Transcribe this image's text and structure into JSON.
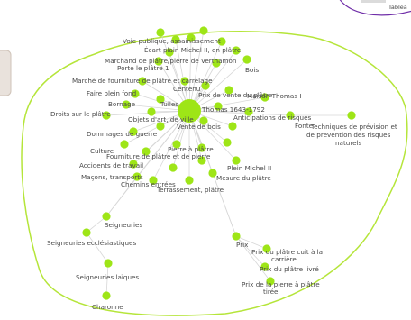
{
  "colors": {
    "node": "#9ee517",
    "edge": "#d7d7d7",
    "outline_main": "#b5e53a",
    "outline_corner": "#6f2da8",
    "side_panel": "#e9e2dc",
    "side_panel_border": "#cfc3b8",
    "text": "#4a4a4a"
  },
  "corner": {
    "label": "Tablea"
  },
  "graph": {
    "center_label": "Thomas 1643-1792",
    "labels": {
      "vase_publique": "Voie publique, assainissement",
      "ecart_plain": "Écart plain Michel II, en plâtre",
      "marchand_platre": "Marchand de plâtre/pierre de Verthamon",
      "porte_plaire": "Porte le plâtre 1",
      "bois": "Bois",
      "marche_fourniture": "Marché de fourniture de plâtre et carrelage",
      "construction_urbaine": "Centenu",
      "faire_plein": "Faire plein fond",
      "prix_vente": "Prix de vente du plâtre",
      "maison_thomas": "Maison Thomas I",
      "bornage": "Bornage",
      "droits": "Droits sur le plâtre",
      "tuiles": "Tuiles",
      "anticipations": "Anticipations de risques",
      "fonte": "Fonte",
      "techniques": "Techniques de prévision et de prévention des risques naturels",
      "dommages": "Dommages de guerre",
      "objets": "Objets d'art, de ville",
      "vente_bois": "Vente de bois",
      "culture": "Culture",
      "fourniture_platre": "Fourniture de plâtre et de pierre",
      "pierre_platre": "Pierre à plâtre",
      "accidents": "Accidents de travail",
      "plein_michel": "Plein Michel II",
      "macons": "Maçons, transports",
      "mesure_platre": "Mesure du plâtre",
      "chemins": "Chemins entrées",
      "terrassement": "Terrassement, plâtre",
      "seigneuries": "Seigneuries",
      "seigneuries_eccl": "Seigneuries ecclésiastiques",
      "seigneuries_laiques": "Seigneuries laïques",
      "charonne": "Charonne",
      "prix": "Prix",
      "prix_cuit": "Prix du plâtre cuit à la carrière",
      "prix_livre": "Prix du plâtre livré",
      "prix_pierre": "Prix de la pierre à plâtre tirée"
    }
  }
}
